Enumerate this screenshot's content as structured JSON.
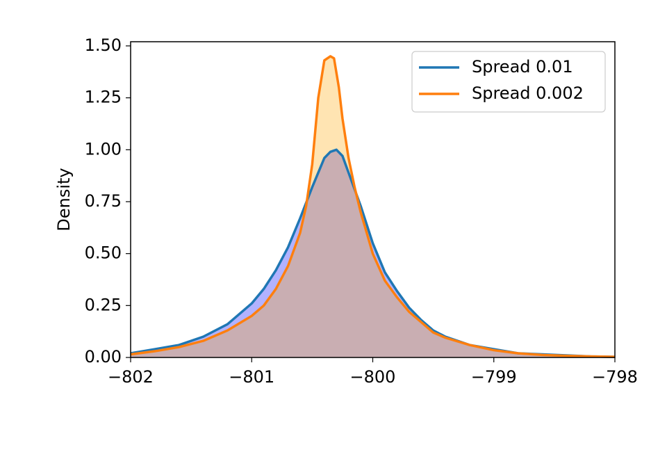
{
  "chart_data": {
    "type": "area",
    "title": "",
    "xlabel": "",
    "ylabel": "Density",
    "xlim": [
      -802,
      -798
    ],
    "ylim": [
      0,
      1.52
    ],
    "xticks": [
      -802,
      -801,
      -800,
      -799,
      -798
    ],
    "xtick_labels": [
      "−802",
      "−801",
      "−800",
      "−799",
      "−798"
    ],
    "yticks": [
      0,
      0.25,
      0.5,
      0.75,
      1.0,
      1.25,
      1.5
    ],
    "ytick_labels": [
      "0.00",
      "0.25",
      "0.50",
      "0.75",
      "1.00",
      "1.25",
      "1.50"
    ],
    "grid": false,
    "legend_position": "top-right",
    "series": [
      {
        "name": "Spread 0.01",
        "color": "#1f77b4",
        "fill": "#0000ff",
        "x": [
          -802.0,
          -801.8,
          -801.6,
          -801.4,
          -801.2,
          -801.0,
          -800.9,
          -800.8,
          -800.7,
          -800.6,
          -800.5,
          -800.45,
          -800.4,
          -800.35,
          -800.3,
          -800.25,
          -800.2,
          -800.1,
          -800.0,
          -799.9,
          -799.8,
          -799.7,
          -799.6,
          -799.5,
          -799.4,
          -799.2,
          -799.0,
          -798.8,
          -798.6,
          -798.4,
          -798.2,
          -798.0
        ],
        "y": [
          0.02,
          0.04,
          0.06,
          0.1,
          0.16,
          0.26,
          0.33,
          0.42,
          0.53,
          0.67,
          0.82,
          0.89,
          0.96,
          0.99,
          1.0,
          0.97,
          0.89,
          0.73,
          0.55,
          0.41,
          0.32,
          0.24,
          0.18,
          0.13,
          0.1,
          0.06,
          0.04,
          0.02,
          0.015,
          0.01,
          0.005,
          0.003
        ]
      },
      {
        "name": "Spread 0.002",
        "color": "#ff7f0e",
        "fill": "#ffa500",
        "x": [
          -802.0,
          -801.8,
          -801.6,
          -801.4,
          -801.2,
          -801.0,
          -800.9,
          -800.8,
          -800.7,
          -800.6,
          -800.55,
          -800.5,
          -800.45,
          -800.4,
          -800.35,
          -800.32,
          -800.28,
          -800.25,
          -800.2,
          -800.15,
          -800.1,
          -800.05,
          -800.0,
          -799.9,
          -799.8,
          -799.7,
          -799.6,
          -799.5,
          -799.4,
          -799.2,
          -799.0,
          -798.8,
          -798.6,
          -798.4,
          -798.2,
          -798.0
        ],
        "y": [
          0.015,
          0.03,
          0.05,
          0.08,
          0.13,
          0.2,
          0.25,
          0.33,
          0.44,
          0.6,
          0.73,
          0.93,
          1.25,
          1.43,
          1.45,
          1.44,
          1.3,
          1.15,
          0.96,
          0.82,
          0.7,
          0.6,
          0.5,
          0.37,
          0.29,
          0.22,
          0.17,
          0.12,
          0.095,
          0.06,
          0.035,
          0.02,
          0.012,
          0.008,
          0.005,
          0.003
        ]
      }
    ]
  }
}
